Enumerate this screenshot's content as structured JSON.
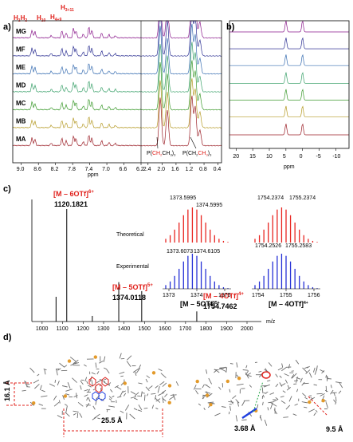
{
  "panel_labels": {
    "a": "a)",
    "b": "b)",
    "c": "c)",
    "d": "d)"
  },
  "chart_data": [
    {
      "id": "a",
      "type": "line",
      "title": "",
      "xlabel": "ppm",
      "xlim": [
        9.2,
        0.3
      ],
      "x_ticks": [
        "9.0",
        "8.6",
        "8.2",
        "7.8",
        "7.4",
        "7.0",
        "6.6",
        "6.2",
        "2.4",
        "2.0",
        "1.6",
        "1.2",
        "0.8",
        "0.4"
      ],
      "series": [
        {
          "name": "MG",
          "color": "#8b1a8c"
        },
        {
          "name": "MF",
          "color": "#2b2f92"
        },
        {
          "name": "ME",
          "color": "#3a6fb2"
        },
        {
          "name": "MD",
          "color": "#3aa16a"
        },
        {
          "name": "MC",
          "color": "#3c9a2d"
        },
        {
          "name": "MB",
          "color": "#b59a25"
        },
        {
          "name": "MA",
          "color": "#9b1e26"
        }
      ],
      "peak_labels": [
        {
          "text": "H1H2",
          "ppm": 8.7
        },
        {
          "text": "H10",
          "ppm": 8.0
        },
        {
          "text": "H4+9",
          "ppm": 7.75
        },
        {
          "text": "H3+11",
          "ppm": 7.4
        }
      ],
      "annotations": [
        "P(CH2CH3)3",
        "P(CH2CH3)3"
      ]
    },
    {
      "id": "b",
      "type": "line",
      "title": "",
      "xlabel": "ppm",
      "xlim": [
        22,
        -14
      ],
      "x_ticks": [
        "20",
        "15",
        "10",
        "5",
        "0",
        "-5",
        "-10"
      ],
      "peaks_ppm": [
        5,
        0
      ],
      "series_colors": [
        "#8b1a8c",
        "#2b2f92",
        "#3a6fb2",
        "#3aa16a",
        "#3c9a2d",
        "#b59a25",
        "#9b1e26"
      ]
    },
    {
      "id": "c",
      "type": "bar",
      "title": "",
      "xlabel": "m/z",
      "xlim": [
        950,
        2070
      ],
      "x_ticks": [
        "1000",
        "1100",
        "1200",
        "1300",
        "1400",
        "1500",
        "1600",
        "1700",
        "1800",
        "1900",
        "2000"
      ],
      "peaks": [
        {
          "mz": 1068,
          "intensity": 0.22
        },
        {
          "mz": 1120.18,
          "intensity": 1.0
        },
        {
          "mz": 1245,
          "intensity": 0.05
        },
        {
          "mz": 1374.01,
          "intensity": 0.35
        },
        {
          "mz": 1486,
          "intensity": 0.27
        },
        {
          "mz": 1754.75,
          "intensity": 0.09
        }
      ],
      "labels": [
        {
          "species": "[M – 6OTf]6+",
          "mz": "1120.1821"
        },
        {
          "species": "[M – 5OTf]5+",
          "mz": "1374.0118"
        },
        {
          "species": "[M – 4OTf]4+",
          "mz": "1754.7462"
        }
      ],
      "insets": [
        {
          "caption": "[M – 5OTf]5+",
          "x_ticks": [
            "1373",
            "1374",
            "1375"
          ],
          "theoretical_labels": [
            "1373.5995",
            "1374.5995"
          ],
          "experimental_labels": [
            "1373.6073",
            "1374.6105"
          ],
          "row_labels": [
            "Theoretical",
            "Experimental"
          ]
        },
        {
          "caption": "[M – 4OTf]4+",
          "x_ticks": [
            "1754",
            "1755",
            "1756"
          ],
          "theoretical_labels": [
            "1754.2374",
            "1755.2374"
          ],
          "experimental_labels": [
            "1754.2526",
            "1755.2583"
          ]
        }
      ]
    }
  ],
  "structure": {
    "dimensions": [
      "16.1 Å",
      "25.5 Å",
      "3.68 Å",
      "9.5 Å"
    ]
  },
  "colors": {
    "red": "#e0201b",
    "blue": "#1f3fe0",
    "theoretical": "#e8241f",
    "experimental": "#2631d6"
  }
}
